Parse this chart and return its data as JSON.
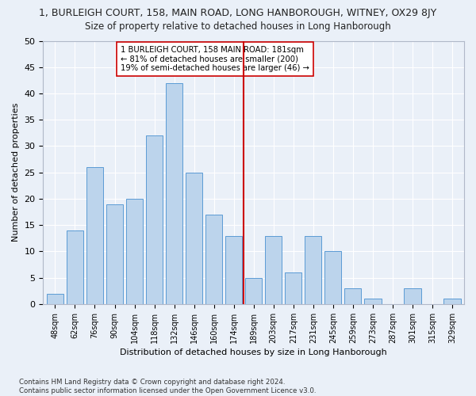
{
  "title": "1, BURLEIGH COURT, 158, MAIN ROAD, LONG HANBOROUGH, WITNEY, OX29 8JY",
  "subtitle": "Size of property relative to detached houses in Long Hanborough",
  "xlabel": "Distribution of detached houses by size in Long Hanborough",
  "ylabel": "Number of detached properties",
  "bar_labels": [
    "48sqm",
    "62sqm",
    "76sqm",
    "90sqm",
    "104sqm",
    "118sqm",
    "132sqm",
    "146sqm",
    "160sqm",
    "174sqm",
    "189sqm",
    "203sqm",
    "217sqm",
    "231sqm",
    "245sqm",
    "259sqm",
    "273sqm",
    "287sqm",
    "301sqm",
    "315sqm",
    "329sqm"
  ],
  "bar_values": [
    2,
    14,
    26,
    19,
    20,
    32,
    42,
    25,
    17,
    13,
    5,
    13,
    6,
    13,
    10,
    3,
    1,
    0,
    3,
    0,
    1
  ],
  "bar_color": "#bcd4ec",
  "bar_edge_color": "#5b9bd5",
  "vline_x": 9.5,
  "vline_color": "#cc0000",
  "annotation_text": "1 BURLEIGH COURT, 158 MAIN ROAD: 181sqm\n← 81% of detached houses are smaller (200)\n19% of semi-detached houses are larger (46) →",
  "ylim": [
    0,
    50
  ],
  "yticks": [
    0,
    5,
    10,
    15,
    20,
    25,
    30,
    35,
    40,
    45,
    50
  ],
  "footer": "Contains HM Land Registry data © Crown copyright and database right 2024.\nContains public sector information licensed under the Open Government Licence v3.0.",
  "bg_color": "#eaf0f8",
  "grid_color": "#ffffff"
}
